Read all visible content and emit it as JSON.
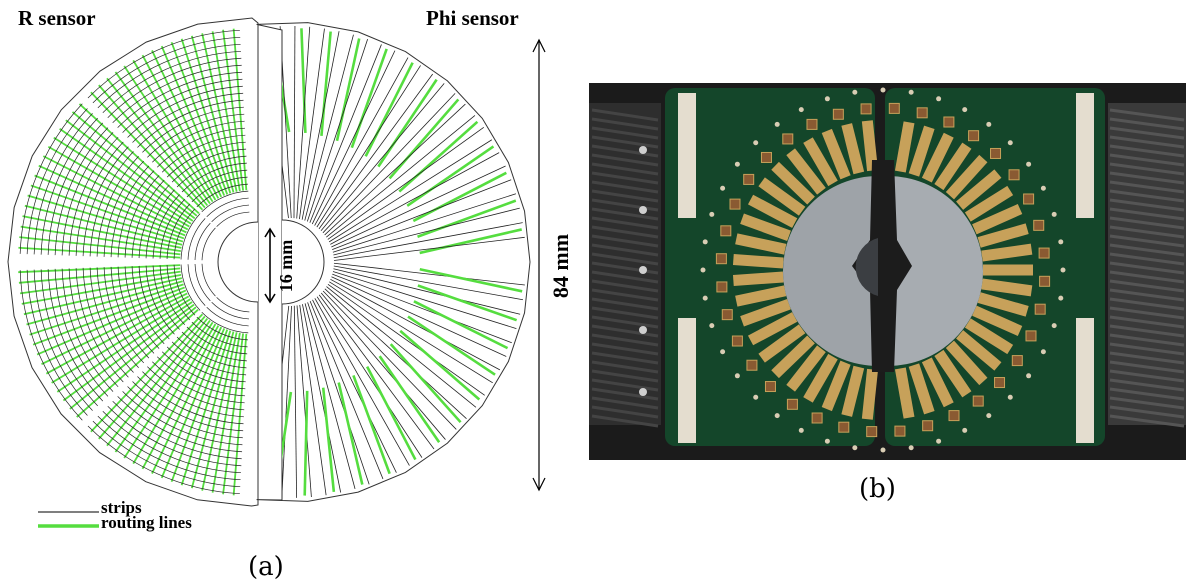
{
  "panel_a": {
    "title_left": "R sensor",
    "title_right": "Phi sensor",
    "dimension_small": "16 mm",
    "dimension_large": "84 mm",
    "legend": {
      "strips": "strips",
      "routing": "routing lines"
    },
    "caption": "(a)"
  },
  "panel_b": {
    "caption": "(b)"
  },
  "colors": {
    "routing": "#55dd3f",
    "strip": "#222222",
    "board_green": "#14462a",
    "hybrid_gold": "#c7a15a",
    "carbon": "#2b2b2b"
  }
}
